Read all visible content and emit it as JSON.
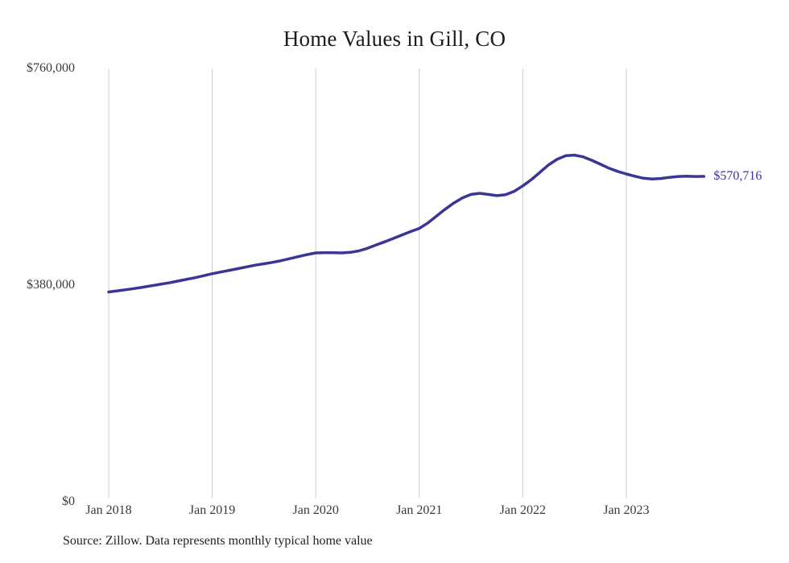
{
  "title": "Home Values in Gill, CO",
  "source_note": "Source: Zillow. Data represents monthly typical home value",
  "end_label": "$570,716",
  "colors": {
    "line": "#3b3597",
    "grid": "#cccccc",
    "axis_text": "#3a3a3a",
    "title_text": "#1c1c1c",
    "end_label_text": "#3b3597",
    "background": "#ffffff"
  },
  "chart_data": {
    "type": "line",
    "title": "Home Values in Gill, CO",
    "xlabel": "",
    "ylabel": "",
    "ylim": [
      0,
      760000
    ],
    "grid": "vertical-only",
    "legend": "none",
    "x_start_month": "2018-01",
    "x_end_month": "2023-10",
    "x_ticks": [
      {
        "label": "Jan 2018",
        "month_index": 0
      },
      {
        "label": "Jan 2019",
        "month_index": 12
      },
      {
        "label": "Jan 2020",
        "month_index": 24
      },
      {
        "label": "Jan 2021",
        "month_index": 36
      },
      {
        "label": "Jan 2022",
        "month_index": 48
      },
      {
        "label": "Jan 2023",
        "month_index": 60
      }
    ],
    "y_ticks": [
      {
        "value": 760000,
        "label": "$760,000"
      },
      {
        "value": 380000,
        "label": "$380,000"
      },
      {
        "value": 0,
        "label": "$0"
      }
    ],
    "series": [
      {
        "name": "Monthly typical home value",
        "values": [
          368000,
          370000,
          372000,
          374000,
          376500,
          379000,
          381500,
          384000,
          387000,
          390000,
          393000,
          396500,
          400000,
          403000,
          406000,
          409000,
          412000,
          415000,
          417500,
          420000,
          423000,
          426500,
          430000,
          433500,
          436500,
          437000,
          437000,
          436500,
          437500,
          440000,
          444500,
          450500,
          456000,
          462000,
          468000,
          474000,
          479500,
          489000,
          501000,
          513000,
          524000,
          533000,
          539000,
          541000,
          539000,
          537000,
          538500,
          544500,
          554000,
          565000,
          578000,
          591000,
          601000,
          607000,
          608000,
          605000,
          599000,
          592000,
          585000,
          579500,
          575000,
          571000,
          567500,
          566000,
          567000,
          569000,
          570500,
          571000,
          570500,
          570716
        ]
      }
    ],
    "end_annotation": "$570,716"
  }
}
